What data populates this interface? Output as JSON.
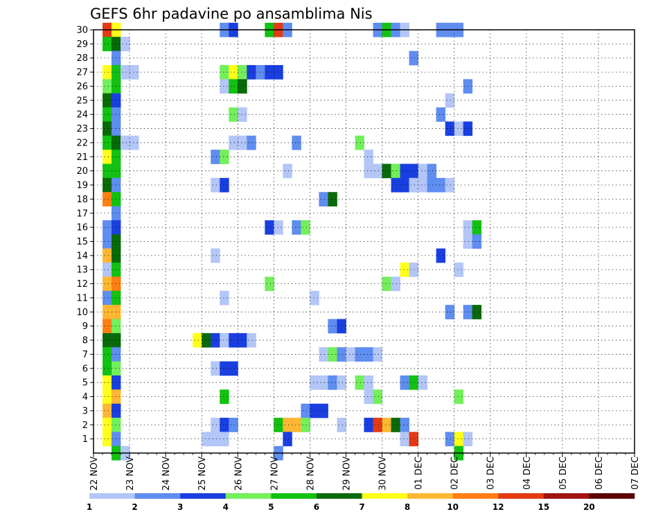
{
  "chart_data": {
    "type": "heatmap",
    "title": "GEFS 6hr padavine po ansamblima Nis",
    "xlabel": "",
    "ylabel": "",
    "y_labels": [
      "1",
      "2",
      "3",
      "4",
      "5",
      "6",
      "7",
      "8",
      "9",
      "10",
      "11",
      "12",
      "13",
      "14",
      "15",
      "16",
      "17",
      "18",
      "19",
      "20",
      "21",
      "22",
      "23",
      "24",
      "25",
      "26",
      "27",
      "28",
      "29",
      "30"
    ],
    "x_labels": [
      "22 NOV",
      "23 NOV",
      "24 NOV",
      "25 NOV",
      "26 NOV",
      "27 NOV",
      "28 NOV",
      "29 NOV",
      "30 NOV",
      "01 DEC",
      "02 DEC",
      "03 DEC",
      "04 DEC",
      "05 DEC",
      "06 DEC",
      "07 DEC"
    ],
    "x_unit": "6h steps from 22 NOV 00Z",
    "x_range": [
      0,
      60
    ],
    "y_range": [
      0,
      30
    ],
    "grid": true,
    "legend": "bottom",
    "colorbar": {
      "labels": [
        "1",
        "2",
        "3",
        "4",
        "5",
        "6",
        "7",
        "8",
        "10",
        "12",
        "15",
        "20"
      ],
      "colors": [
        "#b3c6f7",
        "#5f8df0",
        "#1a3fe0",
        "#73ef5c",
        "#12c112",
        "#0a6a0a",
        "#ffff1a",
        "#ffb733",
        "#ff7f10",
        "#e33a12",
        "#a11212",
        "#5c0000"
      ]
    },
    "cells": [
      [
        30,
        1,
        10
      ],
      [
        30,
        2,
        7
      ],
      [
        30,
        14,
        2
      ],
      [
        30,
        15,
        3
      ],
      [
        30,
        19,
        5
      ],
      [
        30,
        20,
        10
      ],
      [
        30,
        21,
        2
      ],
      [
        30,
        31,
        2
      ],
      [
        30,
        32,
        5
      ],
      [
        30,
        33,
        2
      ],
      [
        30,
        34,
        1
      ],
      [
        30,
        38,
        2
      ],
      [
        30,
        39,
        2
      ],
      [
        30,
        40,
        2
      ],
      [
        29,
        1,
        5
      ],
      [
        29,
        2,
        6
      ],
      [
        29,
        3,
        1
      ],
      [
        28,
        2,
        2
      ],
      [
        28,
        35,
        2
      ],
      [
        27,
        1,
        7
      ],
      [
        27,
        2,
        5
      ],
      [
        27,
        3,
        1
      ],
      [
        27,
        4,
        1
      ],
      [
        27,
        14,
        4
      ],
      [
        27,
        15,
        7
      ],
      [
        27,
        16,
        4
      ],
      [
        27,
        17,
        3
      ],
      [
        27,
        18,
        2
      ],
      [
        27,
        19,
        3
      ],
      [
        27,
        20,
        3
      ],
      [
        26,
        1,
        4
      ],
      [
        26,
        2,
        5
      ],
      [
        26,
        14,
        1
      ],
      [
        26,
        15,
        5
      ],
      [
        26,
        16,
        6
      ],
      [
        26,
        41,
        2
      ],
      [
        25,
        1,
        6
      ],
      [
        25,
        2,
        3
      ],
      [
        25,
        39,
        1
      ],
      [
        24,
        1,
        5
      ],
      [
        24,
        2,
        2
      ],
      [
        24,
        15,
        4
      ],
      [
        24,
        16,
        1
      ],
      [
        24,
        38,
        2
      ],
      [
        23,
        1,
        6
      ],
      [
        23,
        2,
        2
      ],
      [
        23,
        39,
        3
      ],
      [
        23,
        40,
        1
      ],
      [
        23,
        41,
        3
      ],
      [
        22,
        1,
        5
      ],
      [
        22,
        2,
        6
      ],
      [
        22,
        3,
        1
      ],
      [
        22,
        4,
        1
      ],
      [
        22,
        15,
        1
      ],
      [
        22,
        16,
        1
      ],
      [
        22,
        17,
        2
      ],
      [
        22,
        22,
        2
      ],
      [
        22,
        29,
        4
      ],
      [
        21,
        1,
        7
      ],
      [
        21,
        2,
        5
      ],
      [
        21,
        13,
        2
      ],
      [
        21,
        14,
        4
      ],
      [
        21,
        30,
        1
      ],
      [
        20,
        1,
        5
      ],
      [
        20,
        2,
        5
      ],
      [
        20,
        21,
        1
      ],
      [
        20,
        30,
        1
      ],
      [
        20,
        31,
        1
      ],
      [
        20,
        32,
        6
      ],
      [
        20,
        33,
        4
      ],
      [
        20,
        34,
        3
      ],
      [
        20,
        35,
        3
      ],
      [
        20,
        36,
        1
      ],
      [
        20,
        37,
        2
      ],
      [
        19,
        1,
        6
      ],
      [
        19,
        2,
        2
      ],
      [
        19,
        13,
        1
      ],
      [
        19,
        14,
        3
      ],
      [
        19,
        33,
        3
      ],
      [
        19,
        34,
        3
      ],
      [
        19,
        35,
        1
      ],
      [
        19,
        36,
        1
      ],
      [
        19,
        37,
        2
      ],
      [
        19,
        38,
        2
      ],
      [
        19,
        39,
        1
      ],
      [
        18,
        1,
        9
      ],
      [
        18,
        2,
        5
      ],
      [
        18,
        25,
        2
      ],
      [
        18,
        26,
        6
      ],
      [
        17,
        2,
        2
      ],
      [
        16,
        1,
        2
      ],
      [
        16,
        2,
        3
      ],
      [
        16,
        19,
        3
      ],
      [
        16,
        20,
        1
      ],
      [
        16,
        22,
        2
      ],
      [
        16,
        23,
        4
      ],
      [
        16,
        41,
        1
      ],
      [
        16,
        42,
        5
      ],
      [
        15,
        1,
        2
      ],
      [
        15,
        2,
        6
      ],
      [
        15,
        41,
        1
      ],
      [
        15,
        42,
        2
      ],
      [
        14,
        1,
        8
      ],
      [
        14,
        2,
        6
      ],
      [
        14,
        13,
        1
      ],
      [
        14,
        38,
        3
      ],
      [
        13,
        1,
        1
      ],
      [
        13,
        2,
        5
      ],
      [
        13,
        34,
        7
      ],
      [
        13,
        35,
        1
      ],
      [
        13,
        40,
        1
      ],
      [
        12,
        1,
        8
      ],
      [
        12,
        2,
        9
      ],
      [
        12,
        19,
        4
      ],
      [
        12,
        32,
        4
      ],
      [
        12,
        33,
        1
      ],
      [
        11,
        1,
        2
      ],
      [
        11,
        2,
        5
      ],
      [
        11,
        14,
        1
      ],
      [
        11,
        24,
        1
      ],
      [
        10,
        1,
        8
      ],
      [
        10,
        2,
        8
      ],
      [
        10,
        39,
        2
      ],
      [
        10,
        41,
        2
      ],
      [
        10,
        42,
        6
      ],
      [
        9,
        1,
        9
      ],
      [
        9,
        2,
        4
      ],
      [
        9,
        26,
        2
      ],
      [
        9,
        27,
        3
      ],
      [
        8,
        1,
        6
      ],
      [
        8,
        2,
        6
      ],
      [
        8,
        11,
        7
      ],
      [
        8,
        12,
        6
      ],
      [
        8,
        13,
        3
      ],
      [
        8,
        14,
        1
      ],
      [
        8,
        15,
        3
      ],
      [
        8,
        16,
        3
      ],
      [
        8,
        17,
        1
      ],
      [
        7,
        1,
        5
      ],
      [
        7,
        2,
        2
      ],
      [
        7,
        25,
        1
      ],
      [
        7,
        26,
        4
      ],
      [
        7,
        27,
        2
      ],
      [
        7,
        28,
        1
      ],
      [
        7,
        29,
        2
      ],
      [
        7,
        30,
        2
      ],
      [
        7,
        31,
        1
      ],
      [
        6,
        1,
        5
      ],
      [
        6,
        2,
        4
      ],
      [
        6,
        13,
        1
      ],
      [
        6,
        14,
        3
      ],
      [
        6,
        15,
        3
      ],
      [
        5,
        1,
        7
      ],
      [
        5,
        2,
        3
      ],
      [
        5,
        24,
        1
      ],
      [
        5,
        25,
        1
      ],
      [
        5,
        26,
        2
      ],
      [
        5,
        27,
        1
      ],
      [
        5,
        29,
        4
      ],
      [
        5,
        30,
        1
      ],
      [
        5,
        34,
        2
      ],
      [
        5,
        35,
        5
      ],
      [
        5,
        36,
        1
      ],
      [
        4,
        1,
        7
      ],
      [
        4,
        2,
        8
      ],
      [
        4,
        14,
        5
      ],
      [
        4,
        30,
        1
      ],
      [
        4,
        31,
        4
      ],
      [
        4,
        40,
        4
      ],
      [
        3,
        1,
        8
      ],
      [
        3,
        2,
        3
      ],
      [
        3,
        23,
        2
      ],
      [
        3,
        24,
        3
      ],
      [
        3,
        25,
        3
      ],
      [
        2,
        1,
        7
      ],
      [
        2,
        2,
        4
      ],
      [
        2,
        13,
        1
      ],
      [
        2,
        14,
        3
      ],
      [
        2,
        15,
        2
      ],
      [
        2,
        20,
        5
      ],
      [
        2,
        21,
        8
      ],
      [
        2,
        22,
        8
      ],
      [
        2,
        23,
        4
      ],
      [
        2,
        27,
        1
      ],
      [
        2,
        30,
        3
      ],
      [
        2,
        31,
        10
      ],
      [
        2,
        32,
        8
      ],
      [
        2,
        33,
        6
      ],
      [
        2,
        34,
        2
      ],
      [
        1,
        1,
        7
      ],
      [
        1,
        2,
        2
      ],
      [
        1,
        12,
        1
      ],
      [
        1,
        13,
        1
      ],
      [
        1,
        14,
        1
      ],
      [
        1,
        21,
        3
      ],
      [
        1,
        34,
        1
      ],
      [
        1,
        35,
        10
      ],
      [
        1,
        39,
        2
      ],
      [
        1,
        40,
        7
      ],
      [
        1,
        41,
        1
      ],
      [
        0,
        2,
        5
      ],
      [
        0,
        3,
        1
      ],
      [
        0,
        20,
        2
      ],
      [
        0,
        40,
        5
      ]
    ]
  }
}
